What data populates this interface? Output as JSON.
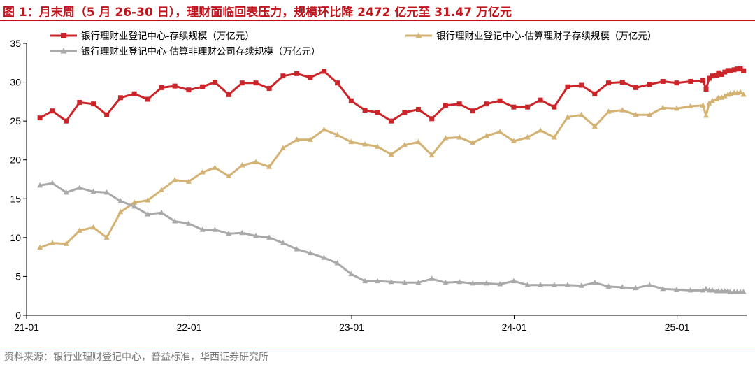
{
  "figure": {
    "title": "图 1：月末周（5 月 26-30 日），理财面临回表压力，规模环比降 2472 亿元至 31.47 万亿元",
    "source": "资料来源：银行业理财登记中心，普益标准，华西证券研究所"
  },
  "colors": {
    "accent": "#c0141c",
    "series_red": "#cc2529",
    "series_gold": "#d4b273",
    "series_gray": "#a9a9a9",
    "axis": "#000000",
    "source_text": "#777777"
  },
  "chart_data": {
    "type": "line",
    "x_type": "date",
    "xlim": [
      "2021-01-01",
      "2025-06-06"
    ],
    "ylim": [
      0,
      35
    ],
    "yticks": [
      0,
      5,
      10,
      15,
      20,
      25,
      30,
      35
    ],
    "xticks": [
      {
        "date": "2021-01-01",
        "label": "21-01"
      },
      {
        "date": "2022-01-01",
        "label": "22-01"
      },
      {
        "date": "2023-01-01",
        "label": "23-01"
      },
      {
        "date": "2024-01-01",
        "label": "24-01"
      },
      {
        "date": "2025-01-01",
        "label": "25-01"
      }
    ],
    "grid": false,
    "legend_position": "top",
    "x": [
      "2021-01-31",
      "2021-02-28",
      "2021-03-31",
      "2021-04-30",
      "2021-05-31",
      "2021-06-30",
      "2021-07-31",
      "2021-08-31",
      "2021-09-30",
      "2021-10-31",
      "2021-11-30",
      "2021-12-31",
      "2022-01-31",
      "2022-02-28",
      "2022-03-31",
      "2022-04-30",
      "2022-05-31",
      "2022-06-30",
      "2022-07-31",
      "2022-08-31",
      "2022-09-30",
      "2022-10-31",
      "2022-11-30",
      "2022-12-31",
      "2023-01-31",
      "2023-02-28",
      "2023-03-31",
      "2023-04-30",
      "2023-05-31",
      "2023-06-30",
      "2023-07-31",
      "2023-08-31",
      "2023-09-30",
      "2023-10-31",
      "2023-11-30",
      "2023-12-31",
      "2024-01-31",
      "2024-02-29",
      "2024-03-31",
      "2024-04-30",
      "2024-05-31",
      "2024-06-30",
      "2024-07-31",
      "2024-08-31",
      "2024-09-30",
      "2024-10-31",
      "2024-11-30",
      "2024-12-31",
      "2025-01-31",
      "2025-02-28",
      "2025-03-07",
      "2025-03-14",
      "2025-03-21",
      "2025-03-31",
      "2025-04-04",
      "2025-04-11",
      "2025-04-18",
      "2025-04-25",
      "2025-04-30",
      "2025-05-09",
      "2025-05-16",
      "2025-05-23",
      "2025-05-30"
    ],
    "series": [
      {
        "name": "银行理财业登记中心-存续规模（万亿元）",
        "color": "#cc2529",
        "marker": "square",
        "values": [
          25.4,
          26.3,
          25.0,
          27.4,
          27.2,
          25.8,
          28.0,
          28.5,
          27.8,
          29.3,
          29.5,
          29.0,
          29.4,
          30.0,
          28.4,
          29.9,
          29.9,
          29.2,
          30.8,
          31.1,
          30.6,
          31.4,
          29.9,
          27.6,
          26.4,
          26.1,
          25.0,
          26.1,
          26.5,
          25.3,
          27.0,
          27.2,
          26.3,
          27.2,
          27.6,
          26.8,
          26.8,
          27.7,
          26.8,
          29.4,
          29.6,
          28.5,
          29.9,
          30.0,
          29.3,
          29.7,
          30.1,
          29.9,
          30.1,
          30.2,
          29.1,
          30.5,
          30.8,
          30.9,
          31.2,
          31.0,
          31.3,
          31.5,
          31.5,
          31.6,
          31.7,
          31.72,
          31.47
        ]
      },
      {
        "name": "银行理财业登记中心-估算理财子存续规模（万亿元）",
        "color": "#d4b273",
        "marker": "triangle",
        "values": [
          8.7,
          9.3,
          9.2,
          10.9,
          11.3,
          10.0,
          13.3,
          14.5,
          14.8,
          16.1,
          17.4,
          17.2,
          18.4,
          19.0,
          17.9,
          19.3,
          19.7,
          19.1,
          21.5,
          22.6,
          22.6,
          23.9,
          23.2,
          22.3,
          22.0,
          21.7,
          20.7,
          21.9,
          22.3,
          20.6,
          22.8,
          22.9,
          22.2,
          23.1,
          23.6,
          22.4,
          22.9,
          23.8,
          22.9,
          25.5,
          25.8,
          24.3,
          26.2,
          26.4,
          25.8,
          25.8,
          26.7,
          26.6,
          26.9,
          27.0,
          25.7,
          27.3,
          27.6,
          27.8,
          28.0,
          28.0,
          28.2,
          28.4,
          28.5,
          28.6,
          28.6,
          28.7,
          28.4
        ]
      },
      {
        "name": "银行理财业登记中心-估算非理财公司存续规模（万亿元）",
        "color": "#a9a9a9",
        "marker": "triangle",
        "values": [
          16.7,
          17.0,
          15.8,
          16.4,
          15.9,
          15.8,
          14.7,
          14.0,
          13.0,
          13.2,
          12.1,
          11.8,
          11.0,
          11.0,
          10.5,
          10.6,
          10.2,
          10.0,
          9.3,
          8.5,
          8.0,
          7.4,
          6.7,
          5.3,
          4.4,
          4.4,
          4.3,
          4.2,
          4.2,
          4.7,
          4.2,
          4.3,
          4.1,
          4.1,
          4.0,
          4.4,
          3.9,
          3.9,
          3.9,
          3.9,
          3.8,
          4.2,
          3.7,
          3.6,
          3.5,
          3.9,
          3.4,
          3.3,
          3.2,
          3.2,
          3.4,
          3.2,
          3.2,
          3.1,
          3.1,
          3.1,
          3.1,
          3.1,
          3.0,
          3.0,
          3.0,
          3.0,
          3.0
        ]
      }
    ]
  }
}
